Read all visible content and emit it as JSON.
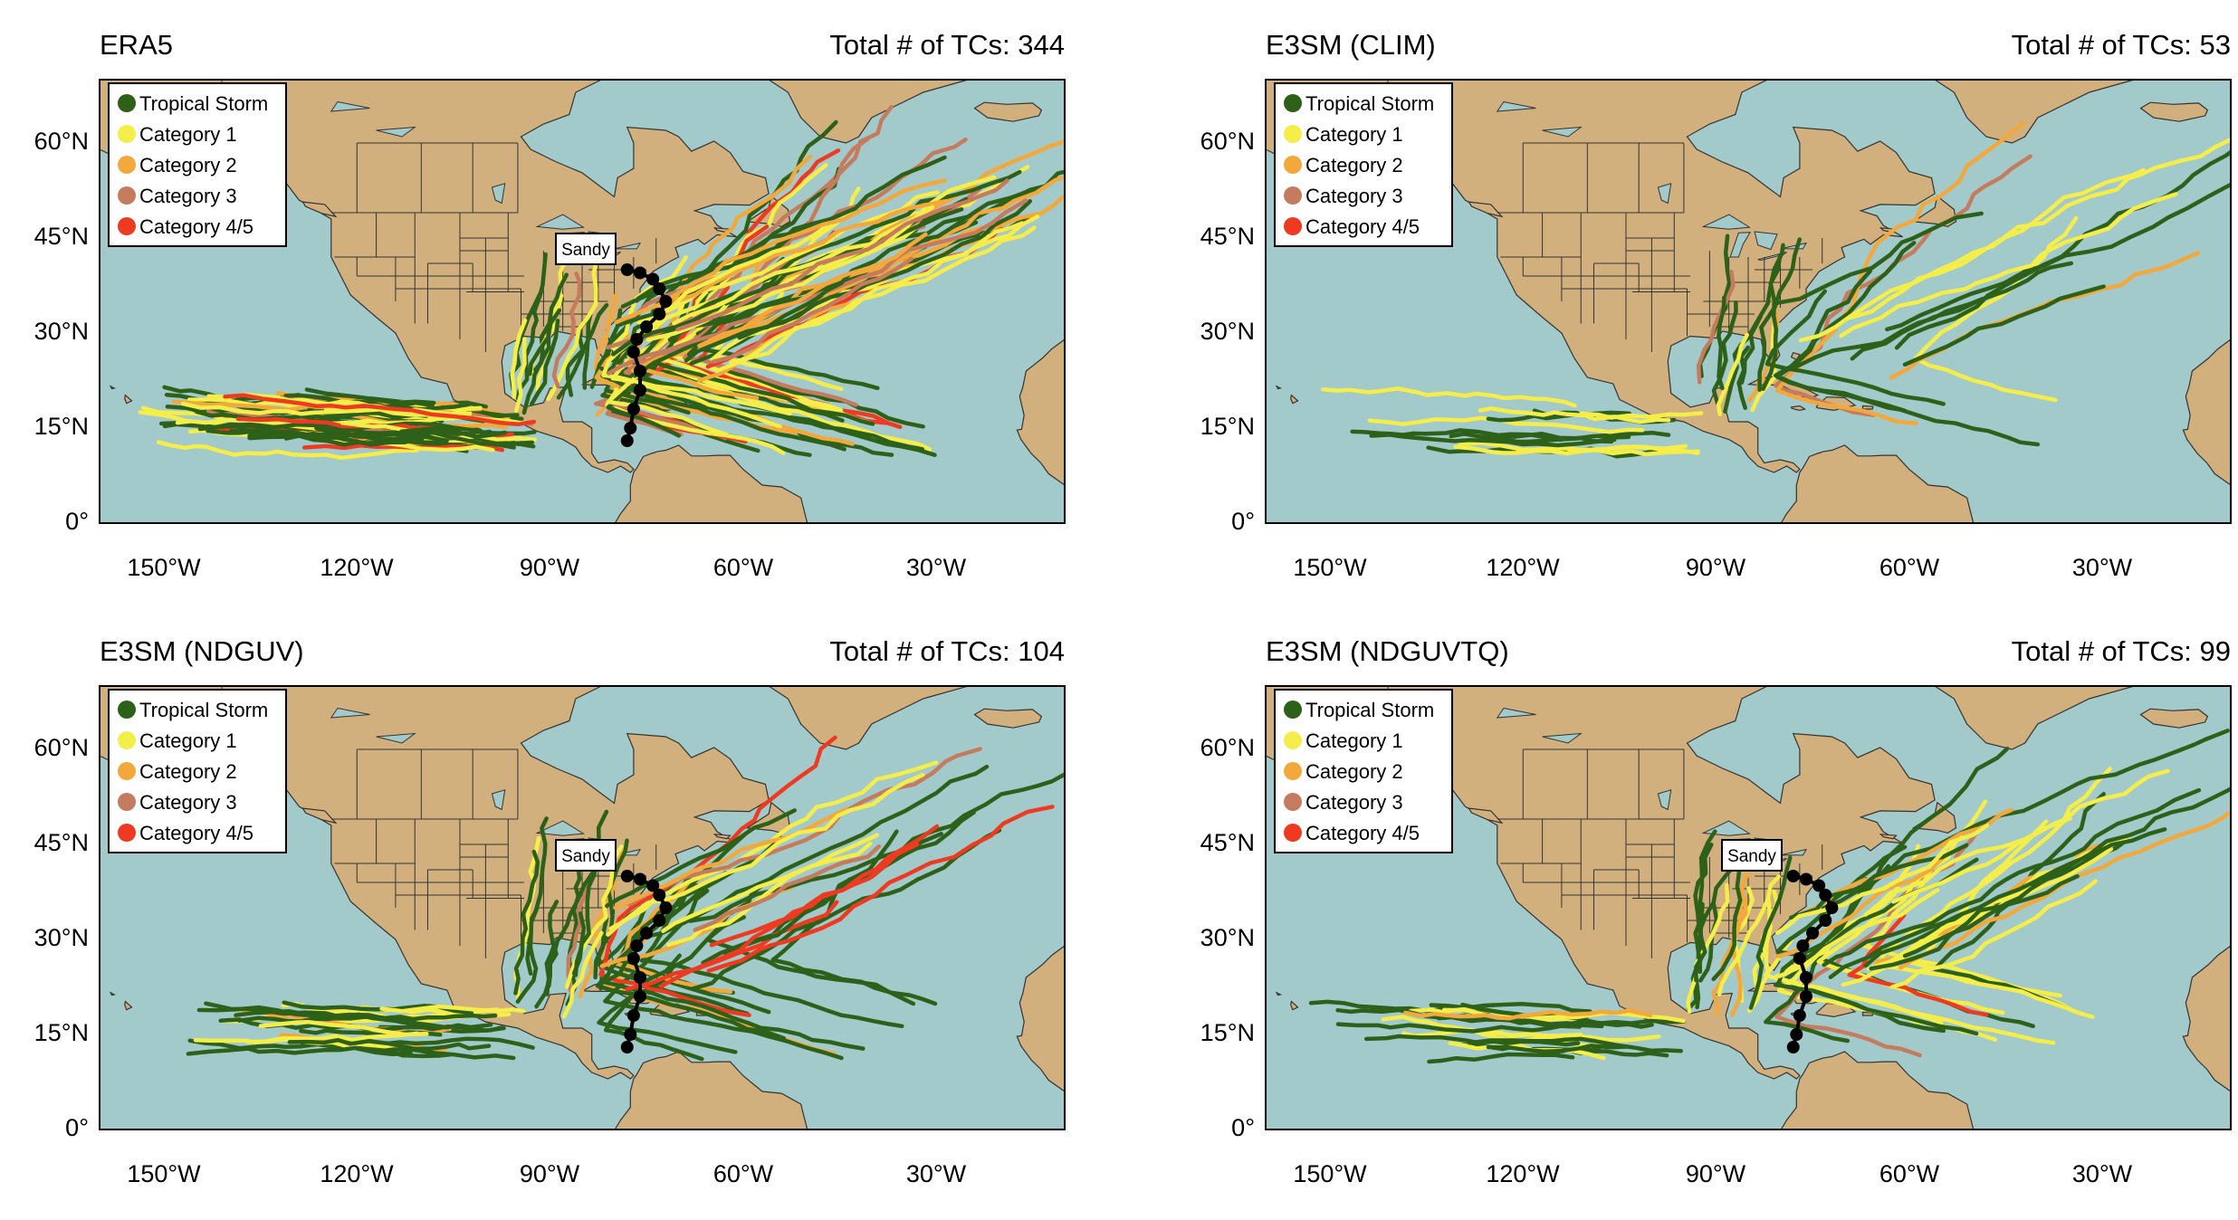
{
  "colors": {
    "ocean": "#a2cacb",
    "land": "#d2b07e",
    "border": "#333333",
    "tropical_storm": "#2d6019",
    "category_1": "#f5ed4a",
    "category_2": "#f3a83b",
    "category_3": "#c47b5e",
    "category_4_5": "#ee3a20",
    "sandy_track": "#000000"
  },
  "legend": [
    {
      "label": "Tropical Storm",
      "color_key": "tropical_storm"
    },
    {
      "label": "Category 1",
      "color_key": "category_1"
    },
    {
      "label": "Category 2",
      "color_key": "category_2"
    },
    {
      "label": "Category 3",
      "color_key": "category_3"
    },
    {
      "label": "Category 4/5",
      "color_key": "category_4_5"
    }
  ],
  "x_ticks": [
    "150°W",
    "120°W",
    "90°W",
    "60°W",
    "30°W"
  ],
  "y_ticks": [
    "60°N",
    "45°N",
    "30°N",
    "15°N",
    "0°"
  ],
  "map_extent": {
    "lon": [
      -160,
      -10
    ],
    "lat": [
      0,
      70
    ]
  },
  "sandy_label": "Sandy",
  "panels": [
    {
      "title": "ERA5",
      "count_text": "Total # of TCs: 344",
      "tcs": 344,
      "show_sandy": true
    },
    {
      "title": "E3SM (CLIM)",
      "count_text": "Total # of TCs: 53",
      "tcs": 53,
      "show_sandy": false
    },
    {
      "title": "E3SM (NDGUV)",
      "count_text": "Total # of TCs: 104",
      "tcs": 104,
      "show_sandy": true
    },
    {
      "title": "E3SM (NDGUVTQ)",
      "count_text": "Total # of TCs: 99",
      "tcs": 99,
      "show_sandy": true
    }
  ],
  "sandy_track": [
    [
      -78,
      13
    ],
    [
      -77.5,
      15
    ],
    [
      -77,
      18
    ],
    [
      -76,
      21
    ],
    [
      -76,
      24
    ],
    [
      -77,
      27
    ],
    [
      -76.5,
      29
    ],
    [
      -75,
      31
    ],
    [
      -73,
      33
    ],
    [
      -72,
      35
    ],
    [
      -73,
      37
    ],
    [
      -74,
      38.5
    ],
    [
      -76,
      39.5
    ],
    [
      -78,
      40
    ]
  ]
}
